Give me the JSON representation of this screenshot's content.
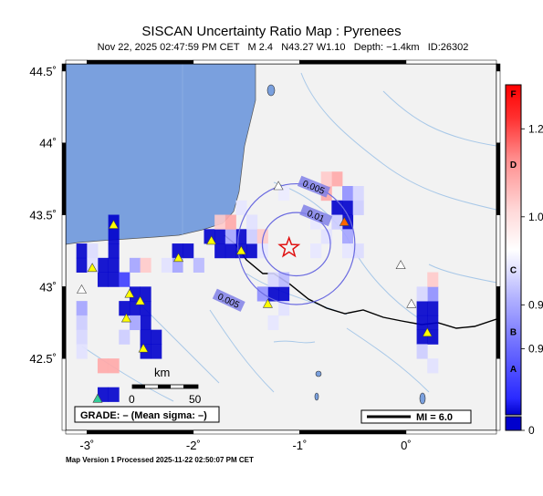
{
  "header": {
    "title": "SISCAN Uncertainty Ratio Map : Pyrenees",
    "subtitle": "Nov 22, 2025 02:47:59 PM CET   M 2.4   N43.27 W1.10   Depth: −1.4km   ID:26302"
  },
  "footer": {
    "processed": "Map Version 1 Processed 2025-11-22 02:50:07 PM CET"
  },
  "map": {
    "lon_range": [
      -3.2,
      0.85
    ],
    "lat_range": [
      42.0,
      44.55
    ],
    "lon_ticks": [
      {
        "v": -3,
        "label": "-3"
      },
      {
        "v": -2,
        "label": "-2"
      },
      {
        "v": -1,
        "label": "-1"
      },
      {
        "v": 0,
        "label": "0"
      }
    ],
    "lat_ticks": [
      {
        "v": 42.5,
        "label": "42.5"
      },
      {
        "v": 43,
        "label": "43"
      },
      {
        "v": 43.5,
        "label": "43.5"
      },
      {
        "v": 44,
        "label": "44"
      },
      {
        "v": 44.5,
        "label": "44.5"
      }
    ],
    "epicenter": {
      "lon": -1.1,
      "lat": 43.27
    },
    "contours": [
      {
        "label": "0.005",
        "rx_deg": 0.55,
        "ry_deg": 0.42,
        "label_lon": -0.87,
        "label_lat": 43.69,
        "label2_lon": -1.67,
        "label2_lat": 42.9
      },
      {
        "label": "0.01",
        "rx_deg": 0.32,
        "ry_deg": 0.22,
        "label_lon": -0.85,
        "label_lat": 43.49
      }
    ],
    "stations": [
      {
        "lon": -2.75,
        "lat": 43.43,
        "color": "#ffff00"
      },
      {
        "lon": -2.95,
        "lat": 43.13,
        "color": "#ffff00"
      },
      {
        "lon": -3.05,
        "lat": 42.98,
        "color": "#ffffff"
      },
      {
        "lon": -2.6,
        "lat": 42.95,
        "color": "#ffff00"
      },
      {
        "lon": -2.5,
        "lat": 42.9,
        "color": "#ffff00"
      },
      {
        "lon": -2.63,
        "lat": 42.78,
        "color": "#ffff00"
      },
      {
        "lon": -2.47,
        "lat": 42.57,
        "color": "#ffff00"
      },
      {
        "lon": -2.14,
        "lat": 43.2,
        "color": "#ffff00"
      },
      {
        "lon": -1.83,
        "lat": 43.32,
        "color": "#ffff00"
      },
      {
        "lon": -1.55,
        "lat": 43.25,
        "color": "#ffff00"
      },
      {
        "lon": -1.3,
        "lat": 42.88,
        "color": "#ffff00"
      },
      {
        "lon": -1.2,
        "lat": 43.7,
        "color": "#ffffff"
      },
      {
        "lon": -0.58,
        "lat": 43.45,
        "color": "#ff6600"
      },
      {
        "lon": -0.05,
        "lat": 43.15,
        "color": "#ffffff"
      },
      {
        "lon": 0.05,
        "lat": 42.88,
        "color": "#ffffff"
      },
      {
        "lon": 0.2,
        "lat": 42.68,
        "color": "#ffff00"
      },
      {
        "lon": -2.9,
        "lat": 42.22,
        "color": "#33cc99"
      }
    ],
    "cells": [
      {
        "lon": -3.1,
        "lat": 43.2,
        "v": 0.0
      },
      {
        "lon": -3.1,
        "lat": 43.1,
        "v": 0.0
      },
      {
        "lon": -2.8,
        "lat": 43.4,
        "v": 0.0
      },
      {
        "lon": -2.8,
        "lat": 43.3,
        "v": 0.0
      },
      {
        "lon": -2.8,
        "lat": 43.2,
        "v": 0.0
      },
      {
        "lon": -2.8,
        "lat": 43.1,
        "v": 0.0
      },
      {
        "lon": -2.8,
        "lat": 43.0,
        "v": 0.0
      },
      {
        "lon": -2.9,
        "lat": 43.1,
        "v": 0.0
      },
      {
        "lon": -2.9,
        "lat": 43.0,
        "v": 0.0
      },
      {
        "lon": -2.7,
        "lat": 43.0,
        "v": 0.1
      },
      {
        "lon": -3.0,
        "lat": 43.2,
        "v": 0.88
      },
      {
        "lon": -3.0,
        "lat": 43.1,
        "v": 0.9
      },
      {
        "lon": -2.6,
        "lat": 43.1,
        "v": 0.6
      },
      {
        "lon": -2.5,
        "lat": 43.1,
        "v": 1.05
      },
      {
        "lon": -2.5,
        "lat": 42.9,
        "v": 0.0
      },
      {
        "lon": -2.6,
        "lat": 42.9,
        "v": 0.0
      },
      {
        "lon": -2.6,
        "lat": 42.8,
        "v": 0.0
      },
      {
        "lon": -2.7,
        "lat": 42.8,
        "v": 0.0
      },
      {
        "lon": -2.5,
        "lat": 42.8,
        "v": 0.0
      },
      {
        "lon": -2.5,
        "lat": 42.7,
        "v": 0.0
      },
      {
        "lon": -2.5,
        "lat": 42.6,
        "v": 0.0
      },
      {
        "lon": -2.4,
        "lat": 42.6,
        "v": 0.0
      },
      {
        "lon": -2.4,
        "lat": 42.5,
        "v": 0.0
      },
      {
        "lon": -2.5,
        "lat": 42.5,
        "v": 0.0
      },
      {
        "lon": -2.6,
        "lat": 42.7,
        "v": 0.6
      },
      {
        "lon": -2.7,
        "lat": 42.6,
        "v": 0.8
      },
      {
        "lon": -3.1,
        "lat": 42.8,
        "v": 0.6
      },
      {
        "lon": -3.1,
        "lat": 42.7,
        "v": 0.8
      },
      {
        "lon": -3.1,
        "lat": 42.6,
        "v": 0.85
      },
      {
        "lon": -3.1,
        "lat": 42.5,
        "v": 0.9
      },
      {
        "lon": -2.9,
        "lat": 42.4,
        "v": 1.1
      },
      {
        "lon": -2.8,
        "lat": 42.4,
        "v": 1.1
      },
      {
        "lon": -2.9,
        "lat": 42.2,
        "v": 0.0
      },
      {
        "lon": -2.8,
        "lat": 42.2,
        "v": 0.0
      },
      {
        "lon": -2.2,
        "lat": 43.2,
        "v": 0.0
      },
      {
        "lon": -2.1,
        "lat": 43.2,
        "v": 0.0
      },
      {
        "lon": -2.2,
        "lat": 43.1,
        "v": 0.6
      },
      {
        "lon": -2.3,
        "lat": 43.1,
        "v": 0.9
      },
      {
        "lon": -2.0,
        "lat": 43.1,
        "v": 0.7
      },
      {
        "lon": -1.9,
        "lat": 43.3,
        "v": 0.0
      },
      {
        "lon": -1.8,
        "lat": 43.3,
        "v": 0.0
      },
      {
        "lon": -1.8,
        "lat": 43.2,
        "v": 0.0
      },
      {
        "lon": -1.7,
        "lat": 43.2,
        "v": 0.0
      },
      {
        "lon": -1.6,
        "lat": 43.2,
        "v": 0.0
      },
      {
        "lon": -1.5,
        "lat": 43.2,
        "v": 0.0
      },
      {
        "lon": -1.6,
        "lat": 43.3,
        "v": 0.0
      },
      {
        "lon": -1.7,
        "lat": 43.3,
        "v": 0.6
      },
      {
        "lon": -1.5,
        "lat": 43.3,
        "v": 0.8
      },
      {
        "lon": -1.5,
        "lat": 43.4,
        "v": 0.9
      },
      {
        "lon": -1.6,
        "lat": 43.5,
        "v": 0.92
      },
      {
        "lon": -1.8,
        "lat": 43.4,
        "v": 1.05
      },
      {
        "lon": -1.7,
        "lat": 43.4,
        "v": 1.1
      },
      {
        "lon": -1.4,
        "lat": 43.3,
        "v": 1.05
      },
      {
        "lon": -1.4,
        "lat": 43.2,
        "v": 0.92
      },
      {
        "lon": -1.3,
        "lat": 42.9,
        "v": 0.0
      },
      {
        "lon": -1.2,
        "lat": 42.9,
        "v": 0.0
      },
      {
        "lon": -1.4,
        "lat": 42.9,
        "v": 0.5
      },
      {
        "lon": -1.2,
        "lat": 43.0,
        "v": 0.7
      },
      {
        "lon": -1.3,
        "lat": 43.0,
        "v": 0.85
      },
      {
        "lon": -1.2,
        "lat": 42.8,
        "v": 0.9
      },
      {
        "lon": -1.3,
        "lat": 42.7,
        "v": 0.92
      },
      {
        "lon": -0.8,
        "lat": 43.6,
        "v": 1.1
      },
      {
        "lon": -0.7,
        "lat": 43.7,
        "v": 1.1
      },
      {
        "lon": -0.8,
        "lat": 43.7,
        "v": 1.05
      },
      {
        "lon": -0.6,
        "lat": 43.5,
        "v": 0.0
      },
      {
        "lon": -0.6,
        "lat": 43.4,
        "v": 0.0
      },
      {
        "lon": -0.7,
        "lat": 43.5,
        "v": 0.0
      },
      {
        "lon": -0.6,
        "lat": 43.6,
        "v": 0.5
      },
      {
        "lon": -0.5,
        "lat": 43.5,
        "v": 0.8
      },
      {
        "lon": -0.5,
        "lat": 43.6,
        "v": 0.85
      },
      {
        "lon": -0.7,
        "lat": 43.4,
        "v": 0.8
      },
      {
        "lon": -0.6,
        "lat": 43.3,
        "v": 0.6
      },
      {
        "lon": -0.5,
        "lat": 43.2,
        "v": 0.88
      },
      {
        "lon": -0.6,
        "lat": 43.2,
        "v": 0.92
      },
      {
        "lon": -0.8,
        "lat": 43.3,
        "v": 0.9
      },
      {
        "lon": -0.9,
        "lat": 43.4,
        "v": 0.93
      },
      {
        "lon": 0.1,
        "lat": 42.8,
        "v": 0.0
      },
      {
        "lon": 0.2,
        "lat": 42.8,
        "v": 0.0
      },
      {
        "lon": 0.1,
        "lat": 42.7,
        "v": 0.0
      },
      {
        "lon": 0.2,
        "lat": 42.7,
        "v": 0.0
      },
      {
        "lon": 0.2,
        "lat": 42.6,
        "v": 0.0
      },
      {
        "lon": 0.1,
        "lat": 42.6,
        "v": 0.0
      },
      {
        "lon": 0.2,
        "lat": 42.9,
        "v": 0.5
      },
      {
        "lon": 0.1,
        "lat": 42.9,
        "v": 0.85
      },
      {
        "lon": 0.2,
        "lat": 43.0,
        "v": 1.05
      },
      {
        "lon": 0.1,
        "lat": 42.5,
        "v": 0.8
      },
      {
        "lon": 0.2,
        "lat": 42.4,
        "v": 0.9
      },
      {
        "lon": -1.2,
        "lat": 43.6,
        "v": 0.95
      },
      {
        "lon": -0.9,
        "lat": 43.2,
        "v": 0.93
      }
    ],
    "scale": {
      "label": "km",
      "ticks": [
        "0",
        "50"
      ]
    },
    "grade_label": "GRADE: – (Mean sigma: –)",
    "mi_label": "MI = 6.0"
  },
  "colorbar": {
    "labels": [
      {
        "v": 1.2,
        "label": "1.2"
      },
      {
        "v": 1.0,
        "label": "1.0"
      },
      {
        "v": 0.9,
        "label": "0.9"
      },
      {
        "v": 0.85,
        "label": "0.9"
      },
      {
        "v": 0.0,
        "label": "0"
      }
    ],
    "letters": [
      {
        "v": 1.28,
        "label": "F"
      },
      {
        "v": 1.12,
        "label": "D"
      },
      {
        "v": 0.94,
        "label": "C"
      },
      {
        "v": 0.87,
        "label": "B"
      },
      {
        "v": 0.6,
        "label": "A"
      }
    ]
  },
  "colors": {
    "water": "#7aa0de",
    "land": "#f2f2f2",
    "river": "#a8c8e8",
    "border": "#000000",
    "contour": "#6a6ae0"
  }
}
